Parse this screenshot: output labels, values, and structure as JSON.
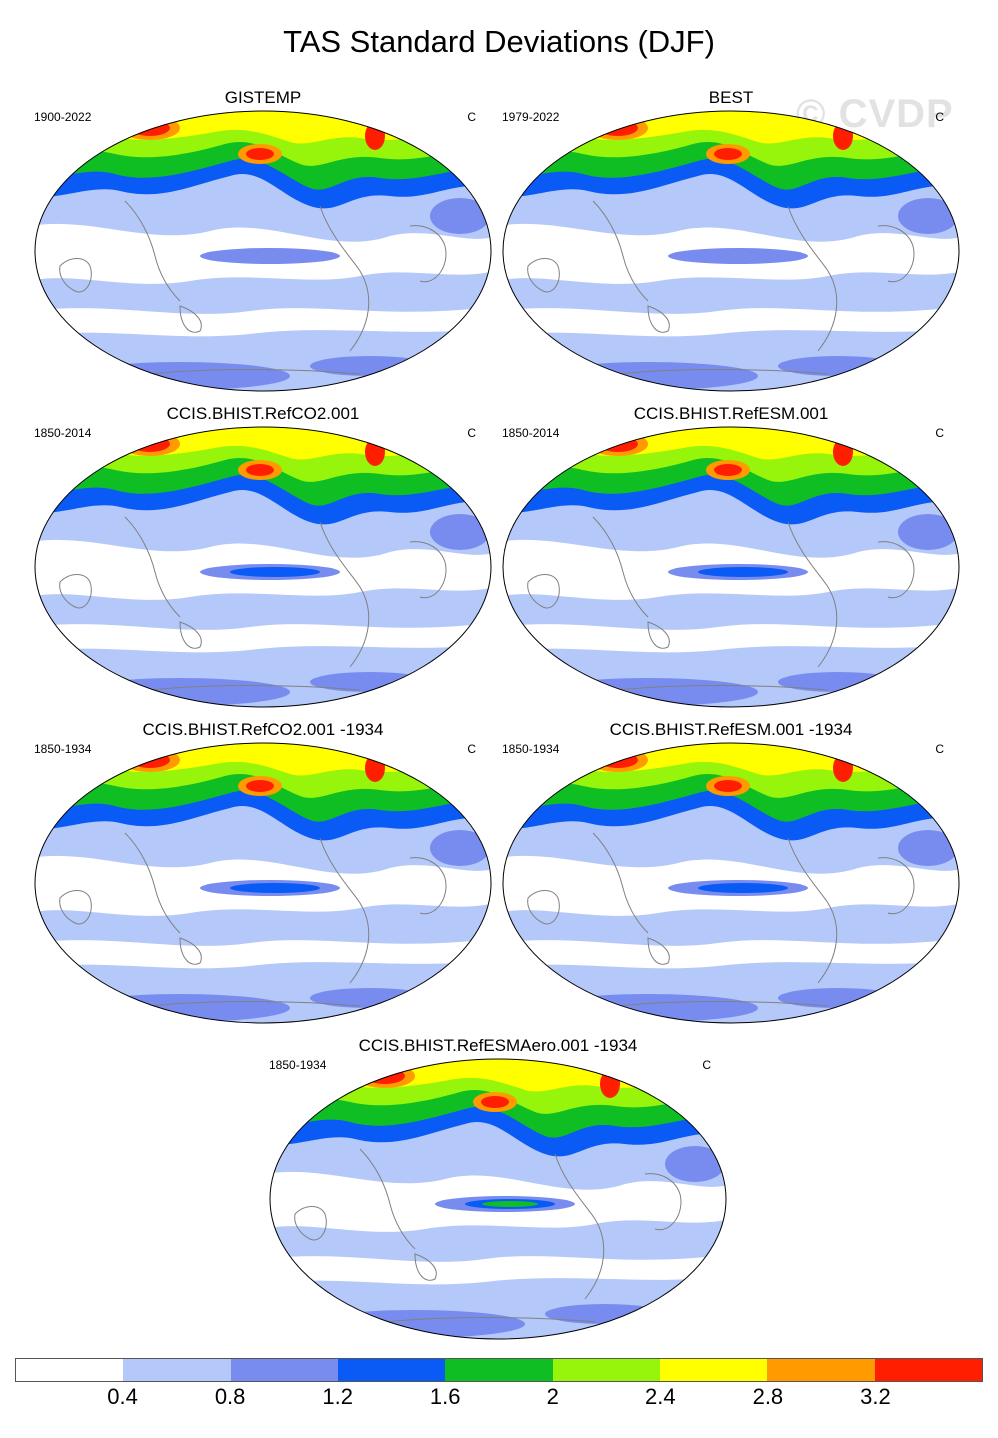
{
  "title": "TAS Standard Deviations (DJF)",
  "watermark": "© CVDP",
  "panels": [
    {
      "title": "GISTEMP",
      "period": "1900-2022",
      "unit": "C"
    },
    {
      "title": "BEST",
      "period": "1979-2022",
      "unit": "C"
    },
    {
      "title": "CCIS.BHIST.RefCO2.001",
      "period": "1850-2014",
      "unit": "C"
    },
    {
      "title": "CCIS.BHIST.RefESM.001",
      "period": "1850-2014",
      "unit": "C"
    },
    {
      "title": "CCIS.BHIST.RefCO2.001 -1934",
      "period": "1850-1934",
      "unit": "C"
    },
    {
      "title": "CCIS.BHIST.RefESM.001 -1934",
      "period": "1850-1934",
      "unit": "C"
    },
    {
      "title": "CCIS.BHIST.RefESMAero.001 -1934",
      "period": "1850-1934",
      "unit": "C"
    }
  ],
  "colorbar": {
    "colors": [
      "#ffffff",
      "#b4c8fa",
      "#788cf0",
      "#0a5af5",
      "#0fbe23",
      "#96f50a",
      "#ffff00",
      "#ff9b00",
      "#ff1e00"
    ],
    "labels": [
      "0.4",
      "0.8",
      "1.2",
      "1.6",
      "2",
      "2.4",
      "2.8",
      "3.2"
    ]
  }
}
